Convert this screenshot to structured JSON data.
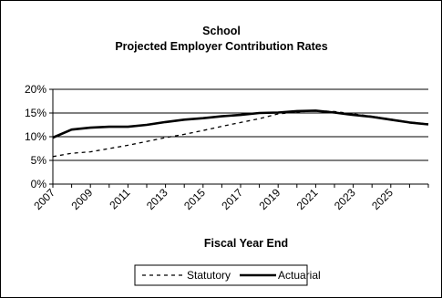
{
  "chart_data": {
    "type": "line",
    "title": "School",
    "subtitle": "Projected Employer Contribution Rates",
    "xlabel": "Fiscal Year End",
    "ylabel": "",
    "x": [
      2007,
      2008,
      2009,
      2010,
      2011,
      2012,
      2013,
      2014,
      2015,
      2016,
      2017,
      2018,
      2019,
      2020,
      2021,
      2022,
      2023,
      2024,
      2025,
      2026,
      2027
    ],
    "x_tick_labels": [
      "2007",
      "2009",
      "2011",
      "2013",
      "2015",
      "2017",
      "2019",
      "2021",
      "2023",
      "2025"
    ],
    "x_tick_values": [
      2007,
      2009,
      2011,
      2013,
      2015,
      2017,
      2019,
      2021,
      2023,
      2025
    ],
    "ylim": [
      0,
      20
    ],
    "y_ticks": [
      0,
      5,
      10,
      15,
      20
    ],
    "y_tick_labels": [
      "0%",
      "5%",
      "10%",
      "15%",
      "20%"
    ],
    "grid": "horizontal",
    "legend_position": "bottom",
    "series": [
      {
        "name": "Statutory",
        "style": "dashed",
        "color": "#000000",
        "values": [
          5.8,
          6.5,
          6.8,
          7.5,
          8.2,
          9.0,
          9.8,
          10.5,
          11.3,
          12.2,
          13.0,
          13.8,
          14.8,
          15.2,
          15.5,
          15.3,
          14.8,
          14.3,
          13.7,
          13.1,
          12.7
        ]
      },
      {
        "name": "Actuarial",
        "style": "solid",
        "color": "#000000",
        "values": [
          9.8,
          11.5,
          11.9,
          12.1,
          12.1,
          12.5,
          13.1,
          13.6,
          13.9,
          14.3,
          14.6,
          15.0,
          15.1,
          15.4,
          15.5,
          15.1,
          14.6,
          14.2,
          13.6,
          13.0,
          12.6
        ]
      }
    ]
  }
}
